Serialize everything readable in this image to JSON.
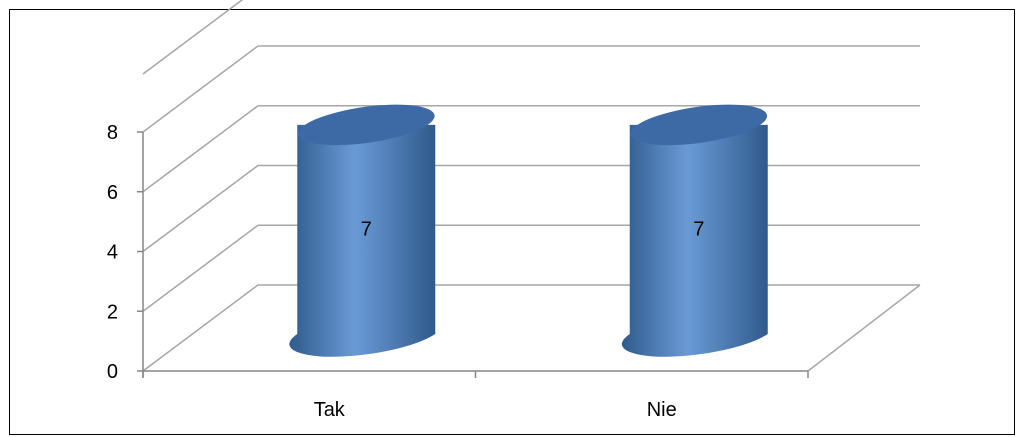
{
  "chart_data": {
    "type": "bar",
    "style": "3d-cylinder",
    "categories": [
      "Tak",
      "Nie"
    ],
    "values": [
      7,
      7
    ],
    "data_labels": [
      "7",
      "7"
    ],
    "ylim": [
      0,
      8
    ],
    "yticks": [
      "0",
      "2",
      "4",
      "6",
      "8"
    ],
    "grid": true,
    "legend": "none",
    "colors": {
      "bar_main": "#4f81bd",
      "bar_light": "#6a9ad6",
      "bar_dark": "#2f5a8c",
      "bar_top": "#3d6aa5",
      "grid": "#a6a6a6",
      "axis": "#868686"
    }
  }
}
